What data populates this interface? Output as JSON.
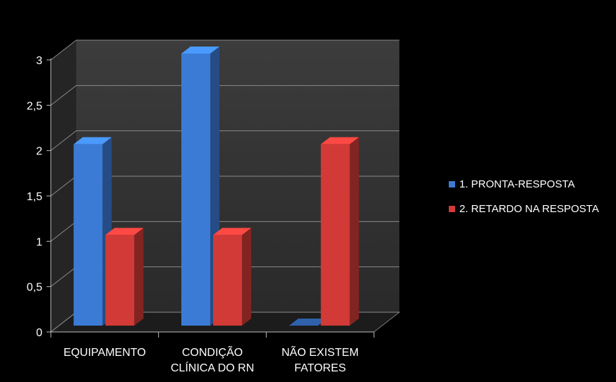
{
  "chart_data": {
    "type": "bar",
    "categories": [
      "EQUIPAMENTO",
      "CONDIÇÃO CLÍNICA DO RN",
      "NÃO EXISTEM FATORES"
    ],
    "category_label_lines": [
      [
        "EQUIPAMENTO"
      ],
      [
        "CONDIÇÃO",
        "CLÍNICA DO RN"
      ],
      [
        "NÃO EXISTEM",
        "FATORES"
      ]
    ],
    "series": [
      {
        "name": "1. PRONTA-RESPOSTA",
        "values": [
          2,
          3,
          0
        ],
        "color": "#3b7bd6"
      },
      {
        "name": "2. RETARDO NA RESPOSTA",
        "values": [
          1,
          1,
          2
        ],
        "color": "#d13a36"
      }
    ],
    "ylim": [
      0,
      3
    ],
    "yticks": [
      "0",
      "0,5",
      "1",
      "1,5",
      "2",
      "2,5",
      "3"
    ],
    "ytick_values": [
      0,
      0.5,
      1,
      1.5,
      2,
      2.5,
      3
    ],
    "grid": true,
    "legend_position": "right",
    "style": "3d-bar",
    "title": "",
    "xlabel": "",
    "ylabel": ""
  }
}
